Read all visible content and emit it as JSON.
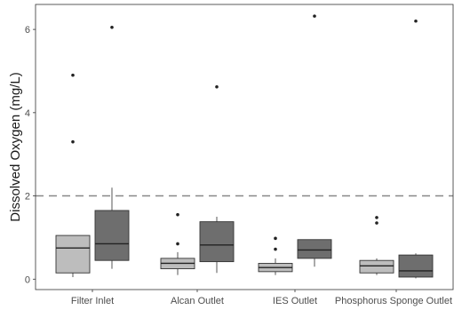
{
  "chart_data": {
    "type": "box",
    "title": "",
    "xlabel": "",
    "ylabel": "Dissolved Oxygen (mg/L)",
    "ylim": [
      -0.25,
      6.6
    ],
    "yticks": [
      0,
      2,
      4,
      6
    ],
    "ytick_labels": [
      "0",
      "2",
      "4",
      "6"
    ],
    "grid": false,
    "legend": "none",
    "categories": [
      "Filter Inlet",
      "Alcan Outlet",
      "IES Outlet",
      "Phosphorus Sponge Outlet"
    ],
    "reference_line": {
      "y": 2,
      "style": "dashed",
      "color": "#888888"
    },
    "series_colors": [
      "#bdbdbd",
      "#6e6e6e"
    ],
    "boxes": [
      {
        "category": "Filter Inlet",
        "series": 0,
        "whisker_low": 0.05,
        "q1": 0.15,
        "median": 0.75,
        "q3": 1.05,
        "whisker_high": 1.05,
        "outliers": [
          3.3,
          4.9
        ]
      },
      {
        "category": "Filter Inlet",
        "series": 1,
        "whisker_low": 0.25,
        "q1": 0.45,
        "median": 0.85,
        "q3": 1.65,
        "whisker_high": 2.2,
        "outliers": [
          6.05
        ]
      },
      {
        "category": "Alcan Outlet",
        "series": 0,
        "whisker_low": 0.1,
        "q1": 0.25,
        "median": 0.38,
        "q3": 0.5,
        "whisker_high": 0.65,
        "outliers": [
          0.85,
          1.55
        ]
      },
      {
        "category": "Alcan Outlet",
        "series": 1,
        "whisker_low": 0.15,
        "q1": 0.42,
        "median": 0.82,
        "q3": 1.38,
        "whisker_high": 1.5,
        "outliers": [
          4.62
        ]
      },
      {
        "category": "IES Outlet",
        "series": 0,
        "whisker_low": 0.1,
        "q1": 0.18,
        "median": 0.28,
        "q3": 0.38,
        "whisker_high": 0.5,
        "outliers": [
          0.72,
          0.98
        ]
      },
      {
        "category": "IES Outlet",
        "series": 1,
        "whisker_low": 0.3,
        "q1": 0.5,
        "median": 0.7,
        "q3": 0.95,
        "whisker_high": 0.95,
        "outliers": [
          6.32
        ]
      },
      {
        "category": "Phosphorus Sponge Outlet",
        "series": 0,
        "whisker_low": 0.1,
        "q1": 0.15,
        "median": 0.32,
        "q3": 0.45,
        "whisker_high": 0.5,
        "outliers": [
          1.35,
          1.48
        ]
      },
      {
        "category": "Phosphorus Sponge Outlet",
        "series": 1,
        "whisker_low": 0.02,
        "q1": 0.05,
        "median": 0.2,
        "q3": 0.58,
        "whisker_high": 0.62,
        "outliers": [
          6.2
        ]
      }
    ]
  }
}
